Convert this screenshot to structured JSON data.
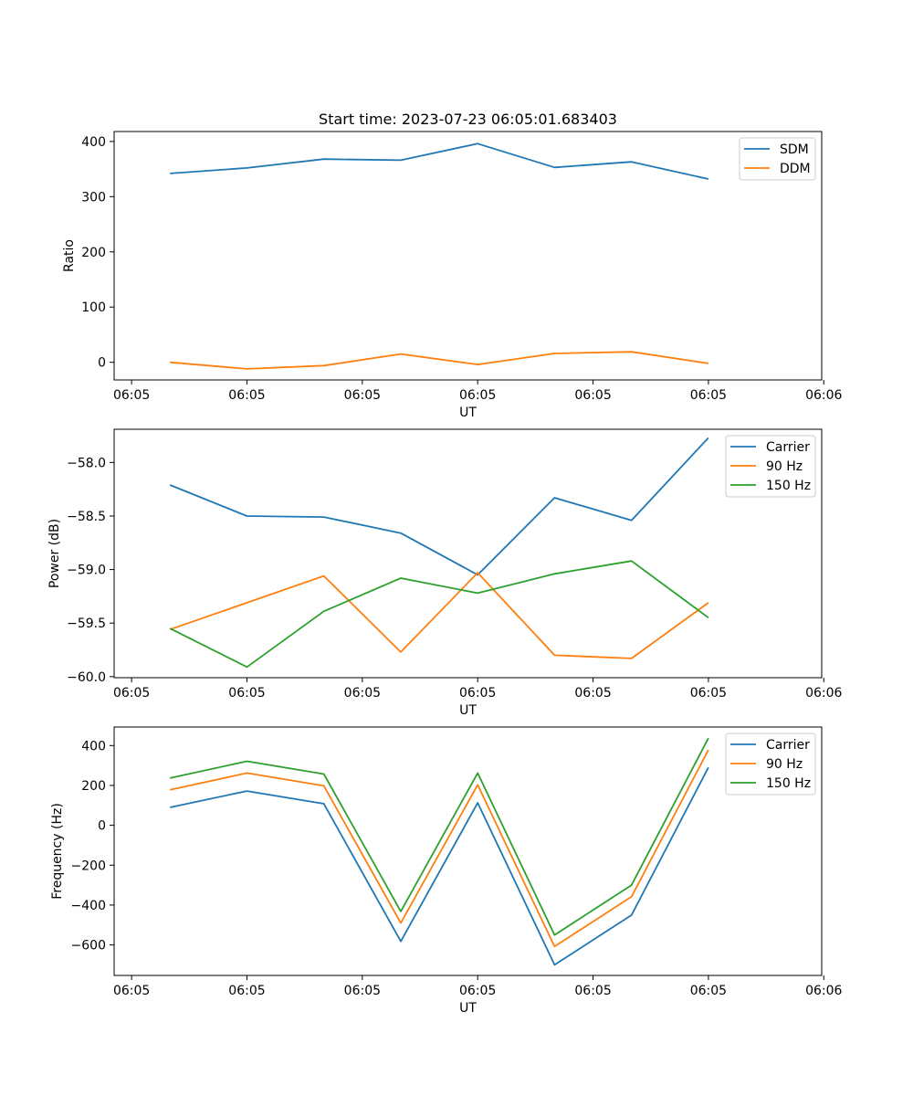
{
  "chart_data": [
    {
      "type": "line",
      "title": "Start time: 2023-07-23 06:05:01.683403",
      "xlabel": "UT",
      "ylabel": "Ratio",
      "x": [
        1,
        2,
        3,
        4,
        5,
        6,
        7,
        8
      ],
      "xlim": [
        0.273,
        9.473
      ],
      "xticks": [
        0.5,
        2.0,
        3.5,
        5.0,
        6.5,
        8.0,
        9.5
      ],
      "xtick_labels": [
        "06:05",
        "06:05",
        "06:05",
        "06:05",
        "06:05",
        "06:05",
        "06:06"
      ],
      "ylim": [
        -32,
        418
      ],
      "yticks": [
        0,
        100,
        200,
        300,
        400
      ],
      "ytick_labels": [
        "0",
        "100",
        "200",
        "300",
        "400"
      ],
      "legend_position": "top-right",
      "series": [
        {
          "name": "SDM",
          "color": "#1f77b4",
          "values": [
            342,
            352,
            368,
            366,
            396,
            353,
            363,
            332
          ]
        },
        {
          "name": "DDM",
          "color": "#ff7f0e",
          "values": [
            0,
            -12,
            -6,
            15,
            -4,
            16,
            19,
            -2
          ]
        }
      ]
    },
    {
      "type": "line",
      "title": "",
      "xlabel": "UT",
      "ylabel": "Power (dB)",
      "x": [
        1,
        2,
        3,
        4,
        5,
        6,
        7,
        8
      ],
      "xlim": [
        0.273,
        9.473
      ],
      "xticks": [
        0.5,
        2.0,
        3.5,
        5.0,
        6.5,
        8.0,
        9.5
      ],
      "xtick_labels": [
        "06:05",
        "06:05",
        "06:05",
        "06:05",
        "06:05",
        "06:05",
        "06:06"
      ],
      "ylim": [
        -60.01,
        -57.69
      ],
      "yticks": [
        -60.0,
        -59.5,
        -59.0,
        -58.5,
        -58.0
      ],
      "ytick_labels": [
        "−60.0",
        "−59.5",
        "−59.0",
        "−58.5",
        "−58.0"
      ],
      "legend_position": "top-right",
      "series": [
        {
          "name": "Carrier",
          "color": "#1f77b4",
          "values": [
            -58.21,
            -58.5,
            -58.51,
            -58.66,
            -59.05,
            -58.33,
            -58.54,
            -57.77
          ]
        },
        {
          "name": "90 Hz",
          "color": "#ff7f0e",
          "values": [
            -59.56,
            -59.31,
            -59.06,
            -59.77,
            -59.03,
            -59.8,
            -59.83,
            -59.31
          ]
        },
        {
          "name": "150 Hz",
          "color": "#2ca02c",
          "values": [
            -59.55,
            -59.91,
            -59.39,
            -59.08,
            -59.22,
            -59.04,
            -58.92,
            -59.45
          ]
        }
      ]
    },
    {
      "type": "line",
      "title": "",
      "xlabel": "UT",
      "ylabel": "Frequency (Hz)",
      "x": [
        1,
        2,
        3,
        4,
        5,
        6,
        7,
        8
      ],
      "xlim": [
        0.273,
        9.473
      ],
      "xticks": [
        0.5,
        2.0,
        3.5,
        5.0,
        6.5,
        8.0,
        9.5
      ],
      "xtick_labels": [
        "06:05",
        "06:05",
        "06:05",
        "06:05",
        "06:05",
        "06:05",
        "06:06"
      ],
      "ylim": [
        -753,
        493
      ],
      "yticks": [
        -600,
        -400,
        -200,
        0,
        200,
        400
      ],
      "ytick_labels": [
        "−600",
        "−400",
        "−200",
        "0",
        "200",
        "400"
      ],
      "legend_position": "top-right",
      "series": [
        {
          "name": "Carrier",
          "color": "#1f77b4",
          "values": [
            90,
            172,
            108,
            -582,
            113,
            -700,
            -450,
            290
          ]
        },
        {
          "name": "90 Hz",
          "color": "#ff7f0e",
          "values": [
            178,
            262,
            198,
            -490,
            203,
            -608,
            -358,
            378
          ]
        },
        {
          "name": "150 Hz",
          "color": "#2ca02c",
          "values": [
            237,
            321,
            257,
            -432,
            262,
            -550,
            -300,
            437
          ]
        }
      ]
    }
  ]
}
